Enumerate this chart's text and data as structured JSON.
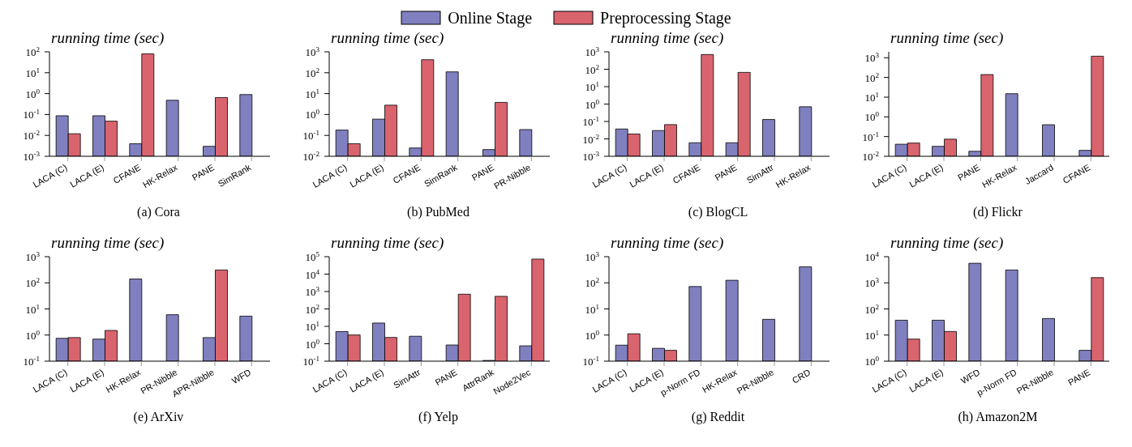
{
  "chart_data": [
    {
      "type": "bar",
      "title": "(a) Cora",
      "ylabel": "running time (sec)",
      "log": true,
      "legend": "top",
      "categories": [
        "LACA (C)",
        "LACA (E)",
        "CFANE",
        "HK-Relax",
        "PANE",
        "SimRank"
      ],
      "ylim": [
        0.001,
        100
      ],
      "yticks": [
        {
          "value": 0.001,
          "label": "10$^{-3}$"
        },
        {
          "value": 0.01,
          "label": "10$^{-2}$"
        },
        {
          "value": 0.1,
          "label": "10$^{-1}$"
        },
        {
          "value": 1,
          "label": "10$^{0}$"
        },
        {
          "value": 10,
          "label": "10$^{1}$"
        },
        {
          "value": 100,
          "label": "10$^{2}$"
        }
      ],
      "series": [
        {
          "name": "Online Stage",
          "color": "#8080c0",
          "values": [
            0.087,
            0.087,
            0.004,
            0.48,
            0.003,
            0.9
          ]
        },
        {
          "name": "Preprocessing Stage",
          "color": "#d9646e",
          "values": [
            0.012,
            0.048,
            80,
            null,
            0.65,
            null
          ]
        }
      ]
    },
    {
      "type": "bar",
      "title": "(b) PubMed",
      "ylabel": "running time (sec)",
      "log": true,
      "categories": [
        "LACA (C)",
        "LACA (E)",
        "CFANE",
        "SimRank",
        "PANE",
        "PR-Nibble"
      ],
      "ylim": [
        0.01,
        1000
      ],
      "yticks": [
        {
          "value": 0.01,
          "label": "10$^{-2}$"
        },
        {
          "value": 0.1,
          "label": "10$^{-1}$"
        },
        {
          "value": 1,
          "label": "10$^{0}$"
        },
        {
          "value": 10,
          "label": "10$^{1}$"
        },
        {
          "value": 100,
          "label": "10$^{2}$"
        },
        {
          "value": 1000,
          "label": "10$^{3}$"
        }
      ],
      "series": [
        {
          "color": "#8080c0",
          "values": [
            0.18,
            0.6,
            0.025,
            110,
            0.021,
            0.19
          ]
        },
        {
          "color": "#d9646e",
          "values": [
            0.04,
            2.8,
            420,
            null,
            3.8,
            null
          ]
        }
      ]
    },
    {
      "type": "bar",
      "title": "(c) BlogCL",
      "ylabel": "running time (sec)",
      "log": true,
      "categories": [
        "LACA (C)",
        "LACA (E)",
        "CFANE",
        "PANE",
        "SimAttr",
        "HK-Relax"
      ],
      "ylim": [
        0.001,
        1000
      ],
      "yticks": [
        {
          "value": 0.001,
          "label": "10$^{-3}$"
        },
        {
          "value": 0.01,
          "label": "10$^{-2}$"
        },
        {
          "value": 0.1,
          "label": "10$^{-1}$"
        },
        {
          "value": 1,
          "label": "10$^{0}$"
        },
        {
          "value": 10,
          "label": "10$^{1}$"
        },
        {
          "value": 100,
          "label": "10$^{2}$"
        },
        {
          "value": 1000,
          "label": "10$^{3}$"
        }
      ],
      "series": [
        {
          "color": "#8080c0",
          "values": [
            0.037,
            0.03,
            0.006,
            0.006,
            0.13,
            0.7
          ]
        },
        {
          "color": "#d9646e",
          "values": [
            0.019,
            0.066,
            700,
            66,
            null,
            null
          ]
        }
      ]
    },
    {
      "type": "bar",
      "title": "(d) Flickr",
      "ylabel": "running time (sec)",
      "log": true,
      "categories": [
        "LACA (C)",
        "LACA (E)",
        "PANE",
        "HK-Relax",
        "Jaccard",
        "CFANE"
      ],
      "ylim": [
        0.01,
        2000
      ],
      "yticks": [
        {
          "value": 0.01,
          "label": "10$^{-2}$"
        },
        {
          "value": 0.1,
          "label": "10$^{-1}$"
        },
        {
          "value": 1,
          "label": "10$^{0}$"
        },
        {
          "value": 10,
          "label": "10$^{1}$"
        },
        {
          "value": 100,
          "label": "10$^{2}$"
        },
        {
          "value": 1000,
          "label": "10$^{3}$"
        }
      ],
      "series": [
        {
          "color": "#8080c0",
          "values": [
            0.041,
            0.032,
            0.018,
            15,
            0.4,
            0.02
          ]
        },
        {
          "color": "#d9646e",
          "values": [
            0.047,
            0.074,
            140,
            null,
            null,
            1200
          ]
        }
      ]
    },
    {
      "type": "bar",
      "title": "(e) ArXiv",
      "ylabel": "running time (sec)",
      "log": true,
      "categories": [
        "LACA (C)",
        "LACA (E)",
        "HK-Relax",
        "PR-Nibble",
        "APR-Nibble",
        "WFD"
      ],
      "ylim": [
        0.1,
        1000
      ],
      "yticks": [
        {
          "value": 0.1,
          "label": "10$^{-1}$"
        },
        {
          "value": 1,
          "label": "10$^{0}$"
        },
        {
          "value": 10,
          "label": "10$^{1}$"
        },
        {
          "value": 100,
          "label": "10$^{2}$"
        },
        {
          "value": 1000,
          "label": "10$^{3}$"
        }
      ],
      "series": [
        {
          "color": "#8080c0",
          "values": [
            0.75,
            0.7,
            140,
            6,
            0.8,
            5.3
          ]
        },
        {
          "color": "#d9646e",
          "values": [
            0.8,
            1.5,
            null,
            null,
            310,
            null
          ]
        }
      ]
    },
    {
      "type": "bar",
      "title": "(f) Yelp",
      "ylabel": "running time (sec)",
      "log": true,
      "categories": [
        "LACA (C)",
        "LACA (E)",
        "SimAttr",
        "PANE",
        "AttrRank",
        "Node2Vec"
      ],
      "ylim": [
        0.1,
        100000
      ],
      "yticks": [
        {
          "value": 0.1,
          "label": "10$^{-1}$"
        },
        {
          "value": 1,
          "label": "10$^{0}$"
        },
        {
          "value": 10,
          "label": "10$^{1}$"
        },
        {
          "value": 100,
          "label": "10$^{2}$"
        },
        {
          "value": 1000,
          "label": "10$^{3}$"
        },
        {
          "value": 10000,
          "label": "10$^{4}$"
        },
        {
          "value": 100000,
          "label": "10$^{5}$"
        }
      ],
      "series": [
        {
          "color": "#8080c0",
          "values": [
            5,
            15.5,
            2.7,
            0.85,
            0.11,
            0.76
          ]
        },
        {
          "color": "#d9646e",
          "values": [
            3.2,
            2.3,
            null,
            700,
            530,
            73000
          ]
        }
      ]
    },
    {
      "type": "bar",
      "title": "(g) Reddit",
      "ylabel": "running time (sec)",
      "log": true,
      "categories": [
        "LACA (C)",
        "LACA (E)",
        "p-Norm FD",
        "HK-Relax",
        "PR-Nibble",
        "CRD"
      ],
      "ylim": [
        0.1,
        1000
      ],
      "yticks": [
        {
          "value": 0.1,
          "label": "10$^{-1}$"
        },
        {
          "value": 1,
          "label": "10$^{0}$"
        },
        {
          "value": 10,
          "label": "10$^{1}$"
        },
        {
          "value": 100,
          "label": "10$^{2}$"
        },
        {
          "value": 1000,
          "label": "10$^{3}$"
        }
      ],
      "series": [
        {
          "color": "#8080c0",
          "values": [
            0.41,
            0.31,
            72,
            125,
            4,
            410
          ]
        },
        {
          "color": "#d9646e",
          "values": [
            1.12,
            0.26,
            null,
            null,
            null,
            null
          ]
        }
      ]
    },
    {
      "type": "bar",
      "title": "(h) Amazon2M",
      "ylabel": "running time (sec)",
      "log": true,
      "categories": [
        "LACA (C)",
        "LACA (E)",
        "WFD",
        "p-Norm FD",
        "PR-Nibble",
        "PANE"
      ],
      "ylim": [
        1,
        10000
      ],
      "yticks": [
        {
          "value": 1,
          "label": "10$^{0}$"
        },
        {
          "value": 10,
          "label": "10$^{1}$"
        },
        {
          "value": 100,
          "label": "10$^{2}$"
        },
        {
          "value": 1000,
          "label": "10$^{3}$"
        },
        {
          "value": 10000,
          "label": "10$^{4}$"
        }
      ],
      "series": [
        {
          "color": "#8080c0",
          "values": [
            37,
            37,
            5600,
            3100,
            43,
            2.6
          ]
        },
        {
          "color": "#d9646e",
          "values": [
            7,
            13.7,
            null,
            null,
            null,
            1580
          ]
        }
      ]
    }
  ]
}
